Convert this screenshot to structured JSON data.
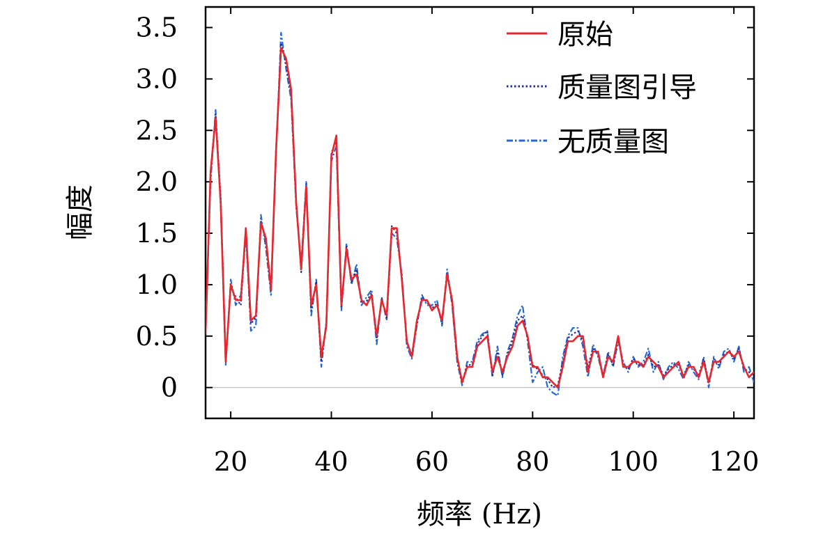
{
  "chart_data": {
    "type": "line",
    "xlabel": "频率 (Hz)",
    "ylabel": "幅度",
    "xlim": [
      15,
      124
    ],
    "ylim": [
      -0.3,
      3.7
    ],
    "xticks": [
      20,
      40,
      60,
      80,
      100,
      120
    ],
    "yticks": [
      0,
      0.5,
      1.0,
      1.5,
      2.0,
      2.5,
      3.0,
      3.5
    ],
    "ytick_labels": [
      "0",
      "0.5",
      "1.0",
      "1.5",
      "2.0",
      "2.5",
      "3.0",
      "3.5"
    ],
    "zero_line": true,
    "grid": false,
    "legend_position": "top-right",
    "x": [
      15,
      16,
      17,
      18,
      19,
      20,
      21,
      22,
      23,
      24,
      25,
      26,
      27,
      28,
      29,
      30,
      31,
      32,
      33,
      34,
      35,
      36,
      37,
      38,
      39,
      40,
      41,
      42,
      43,
      44,
      45,
      46,
      47,
      48,
      49,
      50,
      51,
      52,
      53,
      54,
      55,
      56,
      57,
      58,
      59,
      60,
      61,
      62,
      63,
      64,
      65,
      66,
      67,
      68,
      69,
      70,
      71,
      72,
      73,
      74,
      75,
      76,
      77,
      78,
      79,
      80,
      81,
      82,
      83,
      84,
      85,
      86,
      87,
      88,
      89,
      90,
      91,
      92,
      93,
      94,
      95,
      96,
      97,
      98,
      99,
      100,
      101,
      102,
      103,
      104,
      105,
      106,
      107,
      108,
      109,
      110,
      111,
      112,
      113,
      114,
      115,
      116,
      117,
      118,
      119,
      120,
      121,
      122,
      123,
      124
    ],
    "series": [
      {
        "name": "原始",
        "color": "#e8262b",
        "dash": "solid",
        "values": [
          0.52,
          2.1,
          2.62,
          1.8,
          0.25,
          1.0,
          0.85,
          0.85,
          1.55,
          0.65,
          0.7,
          1.6,
          1.45,
          0.95,
          2.3,
          3.3,
          3.2,
          2.9,
          1.8,
          1.15,
          1.95,
          0.8,
          1.0,
          0.3,
          0.6,
          2.25,
          2.45,
          0.8,
          1.35,
          1.05,
          1.1,
          0.85,
          0.8,
          0.9,
          0.5,
          0.85,
          0.7,
          1.55,
          1.55,
          1.05,
          0.45,
          0.3,
          0.65,
          0.85,
          0.85,
          0.75,
          0.8,
          0.65,
          1.1,
          0.85,
          0.3,
          0.05,
          0.2,
          0.2,
          0.4,
          0.45,
          0.5,
          0.15,
          0.3,
          0.15,
          0.3,
          0.4,
          0.6,
          0.65,
          0.5,
          0.2,
          0.2,
          0.1,
          0.1,
          0.05,
          0.0,
          0.2,
          0.45,
          0.45,
          0.5,
          0.5,
          0.15,
          0.35,
          0.35,
          0.1,
          0.3,
          0.25,
          0.5,
          0.2,
          0.2,
          0.25,
          0.25,
          0.2,
          0.3,
          0.25,
          0.2,
          0.1,
          0.15,
          0.2,
          0.25,
          0.1,
          0.2,
          0.2,
          0.1,
          0.25,
          0.05,
          0.25,
          0.25,
          0.3,
          0.35,
          0.3,
          0.35,
          0.2,
          0.1,
          0.15
        ]
      },
      {
        "name": "质量图引导",
        "color": "#1f2e9c",
        "dash": "dotted",
        "values": [
          0.5,
          2.1,
          2.66,
          1.85,
          0.27,
          0.98,
          0.88,
          0.8,
          1.52,
          0.62,
          0.68,
          1.62,
          1.42,
          0.93,
          2.32,
          3.35,
          3.15,
          2.85,
          1.82,
          1.12,
          1.98,
          0.75,
          1.03,
          0.25,
          0.62,
          2.28,
          2.4,
          0.78,
          1.37,
          1.02,
          1.15,
          0.82,
          0.84,
          0.92,
          0.47,
          0.86,
          0.68,
          1.57,
          1.5,
          1.08,
          0.43,
          0.32,
          0.62,
          0.88,
          0.83,
          0.77,
          0.82,
          0.62,
          1.12,
          0.82,
          0.27,
          0.05,
          0.22,
          0.22,
          0.42,
          0.5,
          0.55,
          0.12,
          0.35,
          0.12,
          0.32,
          0.45,
          0.65,
          0.7,
          0.48,
          0.22,
          0.18,
          0.12,
          0.08,
          0.0,
          0.02,
          0.25,
          0.48,
          0.52,
          0.55,
          0.45,
          0.2,
          0.38,
          0.32,
          0.12,
          0.32,
          0.22,
          0.48,
          0.22,
          0.18,
          0.28,
          0.22,
          0.22,
          0.32,
          0.2,
          0.22,
          0.12,
          0.18,
          0.22,
          0.22,
          0.12,
          0.22,
          0.18,
          0.12,
          0.28,
          0.05,
          0.28,
          0.22,
          0.32,
          0.35,
          0.28,
          0.38,
          0.18,
          0.15,
          0.12
        ]
      },
      {
        "name": "无质量图",
        "color": "#2369d6",
        "dash": "dashdot",
        "values": [
          0.55,
          2.0,
          2.7,
          1.75,
          0.22,
          1.05,
          0.8,
          0.9,
          1.5,
          0.55,
          0.6,
          1.68,
          1.35,
          0.9,
          2.25,
          3.45,
          3.1,
          2.8,
          1.75,
          1.2,
          2.0,
          0.7,
          1.05,
          0.2,
          0.65,
          2.2,
          2.35,
          0.75,
          1.4,
          1.0,
          1.2,
          0.8,
          0.88,
          0.95,
          0.42,
          0.88,
          0.65,
          1.5,
          1.45,
          1.1,
          0.4,
          0.28,
          0.6,
          0.9,
          0.8,
          0.8,
          0.85,
          0.6,
          1.15,
          0.8,
          0.25,
          0.02,
          0.25,
          0.25,
          0.45,
          0.52,
          0.55,
          0.1,
          0.4,
          0.1,
          0.35,
          0.48,
          0.7,
          0.8,
          0.45,
          0.05,
          0.15,
          0.2,
          0.0,
          -0.05,
          -0.08,
          0.3,
          0.5,
          0.58,
          0.58,
          0.4,
          0.1,
          0.42,
          0.3,
          0.1,
          0.35,
          0.2,
          0.45,
          0.25,
          0.15,
          0.3,
          0.2,
          0.25,
          0.38,
          0.15,
          0.25,
          0.08,
          0.2,
          0.25,
          0.18,
          0.08,
          0.25,
          0.15,
          0.08,
          0.3,
          0.0,
          0.3,
          0.18,
          0.35,
          0.38,
          0.25,
          0.4,
          0.15,
          0.2,
          0.05
        ]
      }
    ]
  }
}
